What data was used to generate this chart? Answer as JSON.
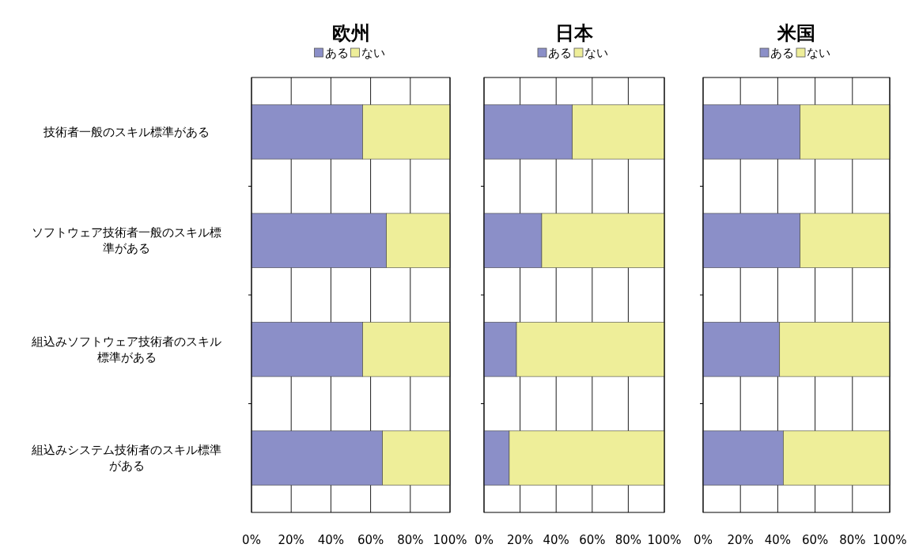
{
  "chart_data": [
    {
      "type": "bar",
      "orientation": "horizontal",
      "stacked": true,
      "title": "欧州",
      "categories": [
        "技術者一般のスキル標準がある",
        "ソフトウェア技術者一般のスキル標準がある",
        "組込みソフトウェア技術者のスキル標準がある",
        "組込みシステム技術者のスキル標準がある"
      ],
      "series": [
        {
          "name": "ある",
          "color": "#8b8fc8",
          "values": [
            56,
            68,
            56,
            66
          ]
        },
        {
          "name": "ない",
          "color": "#eeee99",
          "values": [
            44,
            32,
            44,
            34
          ]
        }
      ],
      "xlim": [
        0,
        100
      ],
      "xticks": [
        {
          "value": 0,
          "label": "0%"
        },
        {
          "value": 20,
          "label": "20%"
        },
        {
          "value": 40,
          "label": "40%"
        },
        {
          "value": 60,
          "label": "60%"
        },
        {
          "value": 80,
          "label": "80%"
        },
        {
          "value": 100,
          "label": "100%"
        }
      ],
      "grid": "x",
      "legend": "top"
    },
    {
      "type": "bar",
      "orientation": "horizontal",
      "stacked": true,
      "title": "日本",
      "categories": [
        "技術者一般のスキル標準がある",
        "ソフトウェア技術者一般のスキル標準がある",
        "組込みソフトウェア技術者のスキル標準がある",
        "組込みシステム技術者のスキル標準がある"
      ],
      "series": [
        {
          "name": "ある",
          "color": "#8b8fc8",
          "values": [
            49,
            32,
            18,
            14
          ]
        },
        {
          "name": "ない",
          "color": "#eeee99",
          "values": [
            51,
            68,
            82,
            86
          ]
        }
      ],
      "xlim": [
        0,
        100
      ],
      "xticks": [
        {
          "value": 0,
          "label": "0%"
        },
        {
          "value": 20,
          "label": "20%"
        },
        {
          "value": 40,
          "label": "40%"
        },
        {
          "value": 60,
          "label": "60%"
        },
        {
          "value": 80,
          "label": "80%"
        },
        {
          "value": 100,
          "label": "100%"
        }
      ],
      "grid": "x",
      "legend": "top",
      "tick_labels": "x"
    },
    {
      "type": "bar",
      "orientation": "horizontal",
      "stacked": true,
      "title": "米国",
      "categories": [
        "技術者一般のスキル標準がある",
        "ソフトウェア技術者一般のスキル標準がある",
        "組込みソフトウェア技術者のスキル標準がある",
        "組込みシステム技術者のスキル標準がある"
      ],
      "series": [
        {
          "name": "ある",
          "color": "#8b8fc8",
          "values": [
            52,
            52,
            41,
            43
          ]
        },
        {
          "name": "ない",
          "color": "#eeee99",
          "values": [
            48,
            48,
            59,
            57
          ]
        }
      ],
      "xlim": [
        0,
        100
      ],
      "xticks": [
        {
          "value": 0,
          "label": "0%"
        },
        {
          "value": 20,
          "label": "20%"
        },
        {
          "value": 40,
          "label": "40%"
        },
        {
          "value": 60,
          "label": "60%"
        },
        {
          "value": 80,
          "label": "80%"
        },
        {
          "value": 100,
          "label": "100%"
        }
      ],
      "grid": "x",
      "legend": "top",
      "tick_labels": "x"
    }
  ]
}
